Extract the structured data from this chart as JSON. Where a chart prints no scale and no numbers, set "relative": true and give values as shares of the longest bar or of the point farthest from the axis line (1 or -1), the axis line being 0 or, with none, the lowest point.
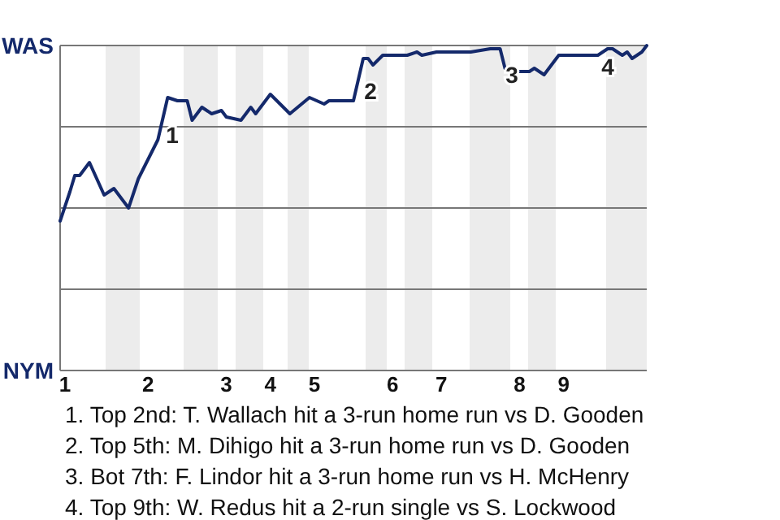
{
  "chart_data": {
    "type": "line",
    "relative": true,
    "categories": [
      null,
      "1",
      null,
      null,
      null,
      null,
      null,
      null,
      null,
      null,
      null,
      null,
      null,
      null,
      null,
      null,
      null,
      null,
      "2",
      null,
      null,
      null,
      null,
      null,
      null,
      null,
      null,
      null,
      null,
      null,
      null,
      null,
      null,
      null,
      "3",
      null,
      null,
      null,
      null,
      null,
      null,
      null,
      null,
      "4",
      null,
      null,
      null,
      null,
      null,
      null,
      null,
      null,
      "5",
      null,
      null,
      null,
      null,
      null,
      null,
      null,
      null,
      null,
      null,
      null,
      null,
      null,
      null,
      null,
      "6",
      null,
      null,
      null,
      null,
      null,
      null,
      null,
      null,
      null,
      "7",
      null,
      null,
      null,
      null,
      null,
      null,
      null,
      null,
      null,
      null,
      null,
      null,
      null,
      null,
      null,
      "8",
      null,
      null,
      null,
      null,
      null,
      null,
      null,
      null,
      "9",
      null,
      null,
      null,
      null,
      null,
      null,
      null,
      null,
      null,
      null,
      null,
      null,
      null,
      null,
      null,
      null,
      null
    ],
    "ref_lines": [
      {
        "axis": "y",
        "value": 1,
        "label": "WAS",
        "color": "#777777"
      },
      {
        "axis": "y",
        "value": 0.75,
        "color": "#777777"
      },
      {
        "axis": "y",
        "value": 0.5,
        "color": "#777777"
      },
      {
        "axis": "y",
        "value": 0.25,
        "color": "#777777"
      },
      {
        "axis": "y",
        "value": 0,
        "label": "NYM",
        "color": "#777777"
      }
    ],
    "series": [
      {
        "color": "#14296b",
        "values": [
          0.46,
          null,
          0.55,
          0.6,
          0.6,
          null,
          0.64,
          null,
          null,
          0.54,
          null,
          0.56,
          null,
          null,
          0.5,
          null,
          0.59,
          null,
          null,
          0.68,
          0.71,
          null,
          0.84,
          null,
          0.83,
          null,
          0.83,
          0.77,
          null,
          0.81,
          null,
          0.79,
          null,
          0.8,
          0.78,
          null,
          null,
          0.77,
          null,
          0.81,
          0.79,
          null,
          null,
          0.85,
          null,
          0.82,
          null,
          0.79,
          null,
          null,
          null,
          0.84,
          null,
          null,
          0.82,
          0.83,
          null,
          null,
          null,
          null,
          0.83,
          null,
          0.96,
          0.96,
          0.94,
          null,
          0.97,
          null,
          null,
          null,
          null,
          0.97,
          null,
          0.98,
          0.97,
          null,
          null,
          0.98,
          null,
          null,
          null,
          null,
          null,
          null,
          0.98,
          null,
          null,
          null,
          0.99,
          null,
          0.99,
          0.93,
          null,
          0.92,
          null,
          null,
          0.92,
          0.93,
          null,
          0.91,
          null,
          null,
          0.97,
          null,
          0.97,
          null,
          null,
          0.97,
          null,
          null,
          0.97,
          null,
          0.99,
          0.99,
          null,
          0.97,
          0.98,
          0.96,
          null,
          0.98,
          1
        ]
      }
    ],
    "annotations": [
      "1",
      "2",
      "3",
      "4",
      "1. Top 2nd: T. Wallach hit a 3-run home run vs D. Gooden",
      "2. Top 5th: M. Dihigo hit a 3-run home run vs D. Gooden",
      "3. Bot 7th: F. Lindor hit a 3-run home run vs H. McHenry",
      "4. Top 9th: W. Redus hit a 2-run single vs S. Lockwood"
    ]
  }
}
